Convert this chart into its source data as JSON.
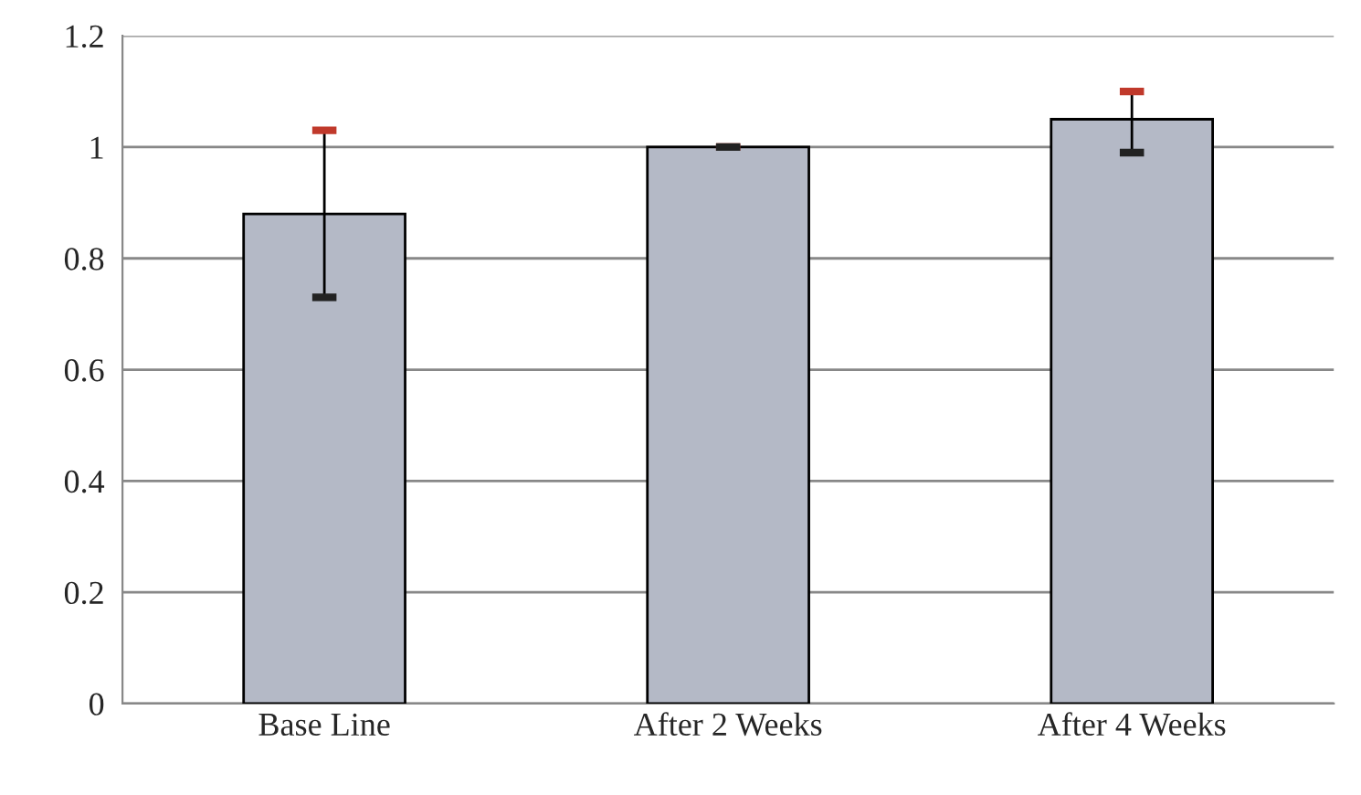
{
  "chart_data": {
    "type": "bar",
    "categories": [
      "Base Line",
      "After 2 Weeks",
      "After 4 Weeks"
    ],
    "values": [
      0.88,
      1.0,
      1.05
    ],
    "errors": [
      [
        0.73,
        1.03
      ],
      [
        1.0,
        1.0
      ],
      [
        0.99,
        1.1
      ]
    ],
    "color": "#b4b9c6",
    "ylim": [
      0,
      1.2
    ],
    "yticks": [
      0,
      0.2,
      0.4,
      0.6,
      0.8,
      1,
      1.2
    ],
    "grid": "y"
  }
}
